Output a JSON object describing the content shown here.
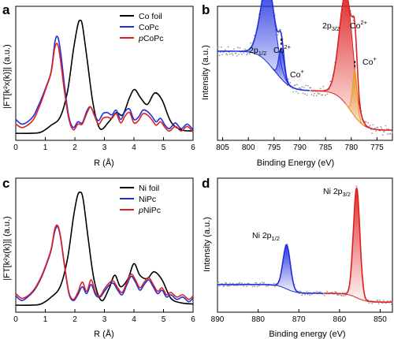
{
  "chart_data": [
    {
      "id": "a",
      "panel_label": "a",
      "type": "line",
      "xlabel": "R (Å)",
      "ylabel": "|FT[k²x(k)]| (a.u.)",
      "xlim": [
        0,
        6
      ],
      "xticks": [
        "0",
        "1",
        "2",
        "3",
        "4",
        "5",
        "6"
      ],
      "legend_position": "top-right",
      "series": [
        {
          "name": "Co foil",
          "color": "#000000",
          "x": [
            0,
            0.5,
            0.85,
            1.2,
            1.5,
            1.75,
            1.95,
            2.1,
            2.18,
            2.26,
            2.42,
            2.62,
            2.85,
            3.15,
            3.4,
            3.62,
            3.85,
            4.02,
            4.22,
            4.45,
            4.7,
            4.95,
            5.25,
            5.6,
            6
          ],
          "y": [
            0.02,
            0.02,
            0.03,
            0.09,
            0.16,
            0.38,
            0.74,
            0.96,
            1.0,
            0.95,
            0.65,
            0.27,
            0.06,
            0.12,
            0.2,
            0.18,
            0.33,
            0.4,
            0.33,
            0.27,
            0.37,
            0.31,
            0.12,
            0.05,
            0.04
          ]
        },
        {
          "name": "CoPc",
          "color": "#1f2fe0",
          "x": [
            0,
            0.2,
            0.4,
            0.6,
            0.75,
            0.9,
            1.05,
            1.2,
            1.33,
            1.43,
            1.53,
            1.65,
            1.8,
            1.95,
            2.1,
            2.25,
            2.4,
            2.52,
            2.65,
            2.8,
            2.95,
            3.1,
            3.25,
            3.4,
            3.55,
            3.7,
            3.85,
            4.0,
            4.15,
            4.3,
            4.45,
            4.6,
            4.75,
            4.9,
            5.05,
            5.2,
            5.4,
            5.6,
            5.8,
            6
          ],
          "y": [
            0.14,
            0.1,
            0.12,
            0.17,
            0.25,
            0.34,
            0.44,
            0.56,
            0.82,
            0.85,
            0.7,
            0.43,
            0.16,
            0.07,
            0.12,
            0.11,
            0.21,
            0.25,
            0.19,
            0.13,
            0.19,
            0.2,
            0.18,
            0.22,
            0.14,
            0.21,
            0.23,
            0.14,
            0.16,
            0.22,
            0.21,
            0.17,
            0.12,
            0.15,
            0.09,
            0.06,
            0.11,
            0.06,
            0.1,
            0.05
          ]
        },
        {
          "name": "pCoPc",
          "color": "#e02020",
          "x": [
            0,
            0.2,
            0.4,
            0.6,
            0.75,
            0.9,
            1.05,
            1.2,
            1.32,
            1.42,
            1.52,
            1.65,
            1.8,
            1.95,
            2.1,
            2.25,
            2.4,
            2.53,
            2.65,
            2.8,
            2.95,
            3.1,
            3.25,
            3.4,
            3.55,
            3.7,
            3.85,
            4.0,
            4.15,
            4.3,
            4.45,
            4.6,
            4.75,
            4.9,
            5.05,
            5.2,
            5.4,
            5.6,
            5.8,
            6
          ],
          "y": [
            0.1,
            0.07,
            0.09,
            0.14,
            0.22,
            0.32,
            0.43,
            0.55,
            0.76,
            0.79,
            0.64,
            0.38,
            0.14,
            0.05,
            0.1,
            0.1,
            0.19,
            0.25,
            0.18,
            0.1,
            0.15,
            0.16,
            0.15,
            0.19,
            0.11,
            0.17,
            0.2,
            0.11,
            0.13,
            0.19,
            0.18,
            0.14,
            0.09,
            0.12,
            0.07,
            0.04,
            0.08,
            0.04,
            0.08,
            0.03
          ]
        }
      ]
    },
    {
      "id": "b",
      "panel_label": "b",
      "type": "scatter+fit",
      "xlabel": "Binding Energy (eV)",
      "ylabel": "Intensity (a.u.)",
      "xlim": [
        806,
        772
      ],
      "xticks": [
        "805",
        "800",
        "795",
        "790",
        "785",
        "780",
        "775"
      ],
      "annotations": [
        {
          "text": "2p",
          "sub": "1/2",
          "sup": "",
          "tail": "Co",
          "tail_sup": "2+"
        },
        {
          "text": "Co",
          "sup": "+"
        },
        {
          "text": "2p",
          "sub": "3/2",
          "tail": "Co",
          "tail_sup": "2+"
        },
        {
          "text": "Co",
          "sup": "+"
        }
      ],
      "peaks": [
        {
          "name": "2p1/2 Co2+",
          "center": 796.2,
          "height": 0.72,
          "width": 1.4,
          "color": "#1f2fe0"
        },
        {
          "name": "2p1/2 Co+",
          "center": 793.6,
          "height": 0.28,
          "width": 0.5,
          "color": "#1f2fe0"
        },
        {
          "name": "2p3/2 Co2+",
          "center": 781.0,
          "height": 1.0,
          "width": 1.3,
          "color": "#e02020"
        },
        {
          "name": "2p3/2 Co+",
          "center": 779.3,
          "height": 0.42,
          "width": 0.45,
          "color": "#e8a020"
        }
      ]
    },
    {
      "id": "c",
      "panel_label": "c",
      "type": "line",
      "xlabel": "R (Å)",
      "ylabel": "|FT[k²x(k)]| (a.u.)",
      "xlim": [
        0,
        6
      ],
      "xticks": [
        "0",
        "1",
        "2",
        "3",
        "4",
        "5",
        "6"
      ],
      "legend_position": "top-right",
      "series": [
        {
          "name": "Ni foil",
          "color": "#000000",
          "x": [
            0,
            0.5,
            0.85,
            1.2,
            1.5,
            1.75,
            1.95,
            2.08,
            2.18,
            2.28,
            2.45,
            2.65,
            2.9,
            3.15,
            3.35,
            3.55,
            3.8,
            4.0,
            4.2,
            4.45,
            4.68,
            4.95,
            5.25,
            5.6,
            6
          ],
          "y": [
            0.02,
            0.02,
            0.03,
            0.09,
            0.18,
            0.42,
            0.78,
            0.96,
            1.0,
            0.94,
            0.6,
            0.24,
            0.06,
            0.16,
            0.28,
            0.18,
            0.25,
            0.38,
            0.28,
            0.25,
            0.31,
            0.24,
            0.08,
            0.04,
            0.03
          ]
        },
        {
          "name": "NiPc",
          "color": "#1f2fe0",
          "x": [
            0,
            0.2,
            0.4,
            0.6,
            0.75,
            0.9,
            1.05,
            1.2,
            1.32,
            1.42,
            1.52,
            1.65,
            1.8,
            1.95,
            2.1,
            2.25,
            2.4,
            2.55,
            2.7,
            2.85,
            3.0,
            3.15,
            3.3,
            3.45,
            3.6,
            3.75,
            3.9,
            4.05,
            4.2,
            4.35,
            4.5,
            4.65,
            4.8,
            4.95,
            5.1,
            5.25,
            5.45,
            5.65,
            5.85,
            6
          ],
          "y": [
            0.1,
            0.06,
            0.09,
            0.14,
            0.2,
            0.28,
            0.38,
            0.5,
            0.66,
            0.7,
            0.6,
            0.36,
            0.12,
            0.06,
            0.11,
            0.18,
            0.12,
            0.2,
            0.11,
            0.09,
            0.14,
            0.19,
            0.21,
            0.15,
            0.11,
            0.19,
            0.27,
            0.22,
            0.15,
            0.2,
            0.24,
            0.18,
            0.12,
            0.15,
            0.09,
            0.11,
            0.07,
            0.09,
            0.05,
            0.08
          ]
        },
        {
          "name": "pNiPc",
          "color": "#e02020",
          "x": [
            0,
            0.2,
            0.4,
            0.6,
            0.75,
            0.9,
            1.05,
            1.2,
            1.32,
            1.42,
            1.52,
            1.65,
            1.8,
            1.95,
            2.1,
            2.25,
            2.4,
            2.55,
            2.7,
            2.85,
            3.0,
            3.15,
            3.3,
            3.45,
            3.6,
            3.75,
            3.9,
            4.05,
            4.2,
            4.35,
            4.5,
            4.65,
            4.8,
            4.95,
            5.1,
            5.25,
            5.45,
            5.65,
            5.85,
            6
          ],
          "y": [
            0.12,
            0.08,
            0.1,
            0.15,
            0.21,
            0.29,
            0.39,
            0.51,
            0.68,
            0.71,
            0.61,
            0.37,
            0.13,
            0.07,
            0.13,
            0.22,
            0.14,
            0.24,
            0.13,
            0.1,
            0.16,
            0.21,
            0.23,
            0.17,
            0.13,
            0.21,
            0.29,
            0.24,
            0.17,
            0.22,
            0.26,
            0.2,
            0.14,
            0.17,
            0.11,
            0.13,
            0.09,
            0.11,
            0.07,
            0.1
          ]
        }
      ]
    },
    {
      "id": "d",
      "panel_label": "d",
      "type": "scatter+fit",
      "xlabel": "Binding energy (eV)",
      "ylabel": "Intensity (a.u.)",
      "xlim": [
        890,
        847
      ],
      "xticks": [
        "890",
        "880",
        "870",
        "860",
        "850"
      ],
      "annotations": [
        {
          "text": "Ni 2p",
          "sub": "1/2"
        },
        {
          "text": "Ni 2p",
          "sub": "3/2"
        }
      ],
      "peaks": [
        {
          "name": "Ni 2p1/2",
          "center": 873.0,
          "height": 0.4,
          "width": 0.9,
          "color": "#1f2fe0"
        },
        {
          "name": "Ni 2p3/2",
          "center": 855.8,
          "height": 1.0,
          "width": 0.8,
          "color": "#e02020"
        }
      ]
    }
  ]
}
